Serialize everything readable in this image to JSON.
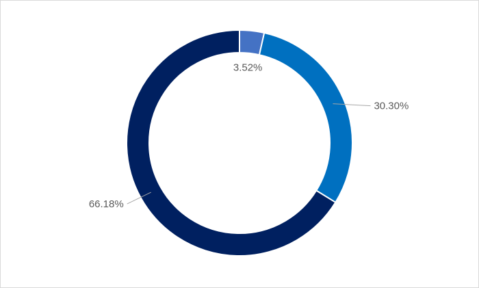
{
  "chart_data": {
    "type": "donut",
    "values": [
      3.52,
      30.3,
      66.18
    ],
    "value_labels": [
      "3.52%",
      "30.30%",
      "66.18%"
    ],
    "colors": [
      "#4472c4",
      "#0070c0",
      "#002060"
    ]
  }
}
